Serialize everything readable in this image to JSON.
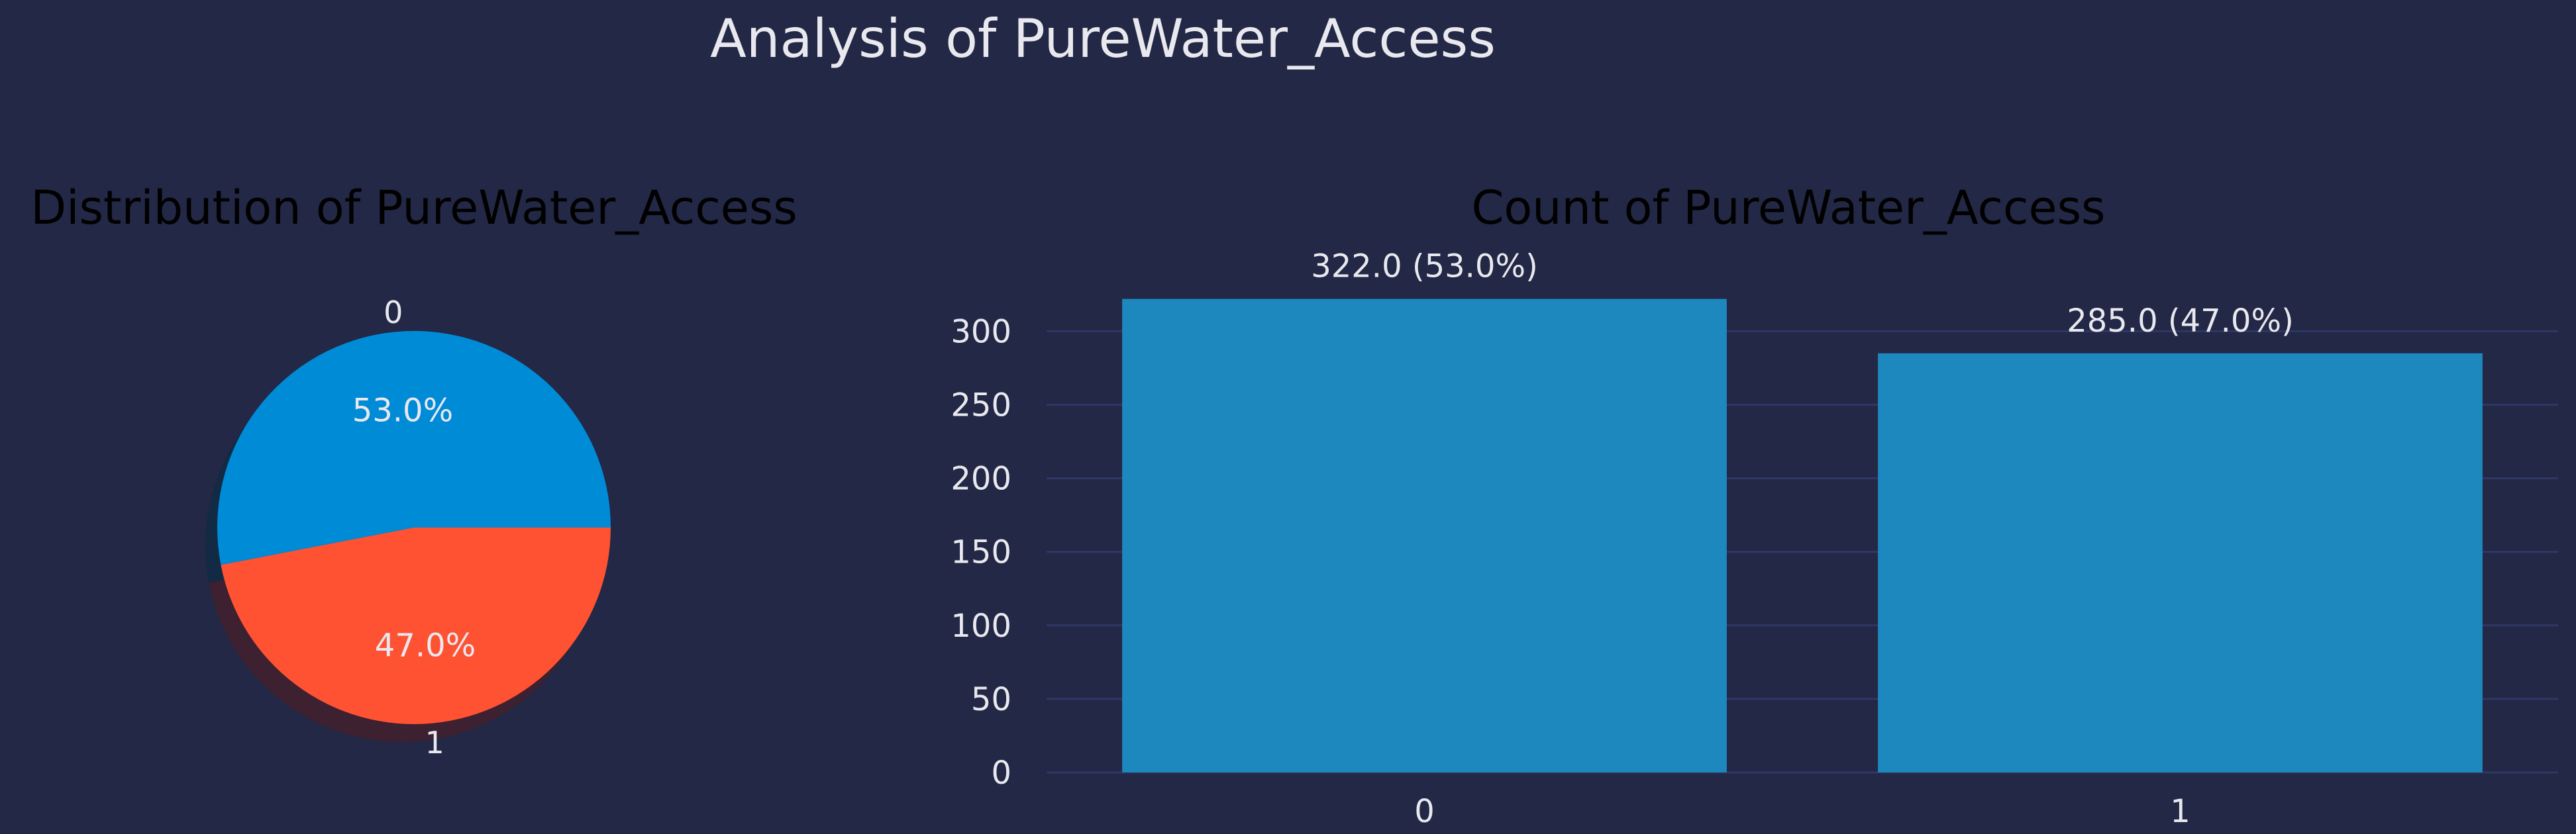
{
  "figure": {
    "title": "Analysis of PureWater_Access",
    "background": "#222845",
    "text_color": "#e8e8ee",
    "grid_color": "#2f3766"
  },
  "chart_data": [
    {
      "type": "pie",
      "title": "Distribution of PureWater_Access",
      "labels": [
        "0",
        "1"
      ],
      "values": [
        322,
        285
      ],
      "percent_labels": [
        "53.0%",
        "47.0%"
      ],
      "colors": [
        "#008bd7",
        "#ff5233"
      ],
      "shadow": true
    },
    {
      "type": "bar",
      "title": "Count of PureWater_Access",
      "categories": [
        "0",
        "1"
      ],
      "values": [
        322,
        285
      ],
      "data_labels": [
        "322.0 (53.0%)",
        "285.0 (47.0%)"
      ],
      "yticks": [
        0,
        50,
        100,
        150,
        200,
        250,
        300
      ],
      "ylim": [
        0,
        338
      ],
      "grid": true,
      "bar_color": "#1c88bd",
      "xlabel": "",
      "ylabel": ""
    }
  ]
}
